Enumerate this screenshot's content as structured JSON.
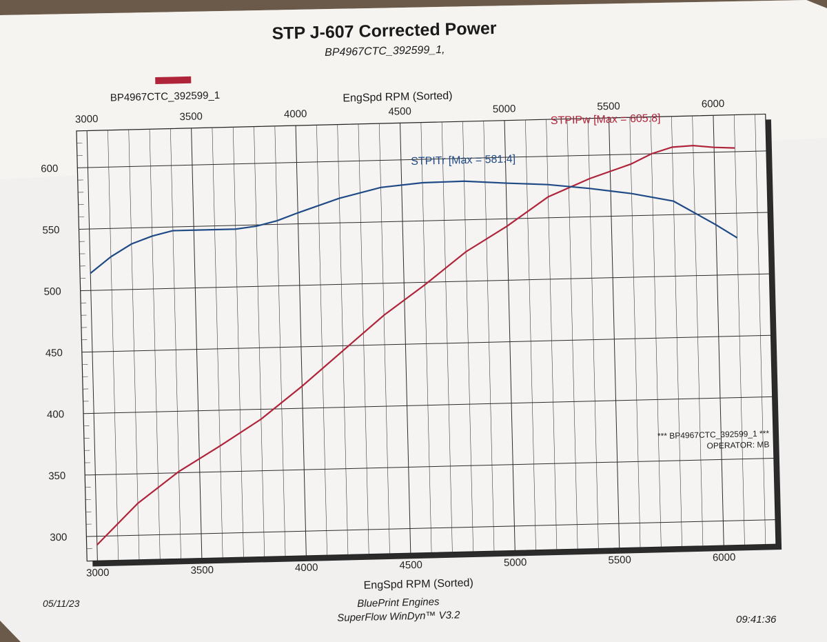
{
  "chart_data": {
    "type": "line",
    "title": "STP J-607 Corrected Power",
    "subtitle": "BP4967CTC_392599_1,",
    "legend_label": "BP4967CTC_392599_1",
    "legend_color": "#b0243a",
    "xlabel_top": "EngSpd RPM    (Sorted)",
    "xlabel_bottom": "EngSpd RPM    (Sorted)",
    "xlim": [
      2950,
      6250
    ],
    "ylim": [
      280,
      630
    ],
    "x_ticks": [
      3000,
      3500,
      4000,
      4500,
      5000,
      5500,
      6000
    ],
    "y_ticks": [
      300,
      350,
      400,
      450,
      500,
      550,
      600
    ],
    "grid": true,
    "series": [
      {
        "name": "STPIPw",
        "color": "#b0243a",
        "annotation": "STPIPw [Max = 605.8]",
        "x": [
          3000,
          3200,
          3400,
          3600,
          3800,
          4000,
          4200,
          4400,
          4600,
          4800,
          5000,
          5200,
          5400,
          5600,
          5700,
          5800,
          5900,
          6000,
          6100
        ],
        "y": [
          293,
          326,
          351,
          371,
          392,
          418,
          446,
          474,
          498,
          524,
          544,
          567,
          581,
          592,
          600,
          605,
          605.8,
          604,
          603
        ]
      },
      {
        "name": "STPITr",
        "color": "#1f4a86",
        "annotation": "STPITr [Max = 581.4]",
        "x": [
          3000,
          3100,
          3200,
          3300,
          3400,
          3500,
          3600,
          3700,
          3800,
          3900,
          4000,
          4200,
          4400,
          4600,
          4800,
          5000,
          5200,
          5400,
          5600,
          5800,
          6000,
          6100
        ],
        "y": [
          514,
          527,
          537,
          543,
          547,
          547,
          547,
          547,
          549,
          553,
          559,
          570,
          578,
          581,
          581.4,
          579,
          577,
          573,
          568,
          561,
          541,
          530
        ]
      }
    ]
  },
  "footer": {
    "date": "05/11/23",
    "line1": "BluePrint Engines",
    "line2": "SuperFlow WinDyn™ V3.2",
    "time": "09:41:36",
    "run_id": "*** BP4967CTC_392599_1 ***",
    "operator": "OPERATOR: MB"
  }
}
